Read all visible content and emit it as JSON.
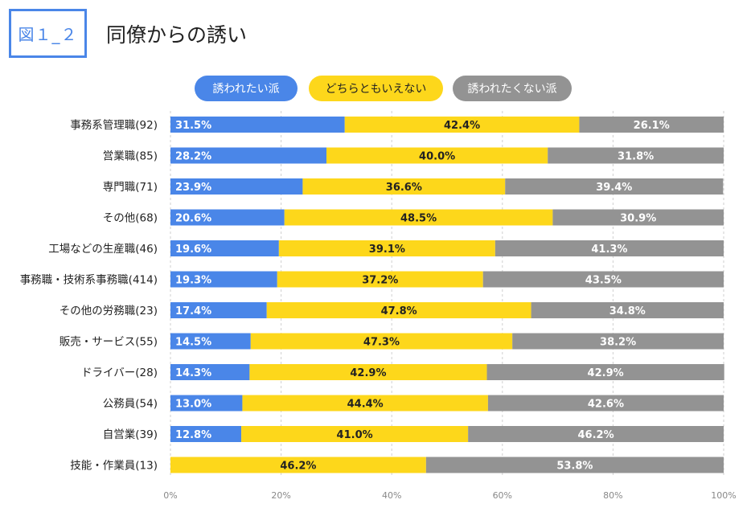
{
  "figure_label": "図１_２",
  "chart_data": {
    "type": "bar",
    "orientation": "horizontal",
    "stacked": true,
    "title": "同僚からの誘い",
    "categories": [
      "事務系管理職(92)",
      "営業職(85)",
      "専門職(71)",
      "その他(68)",
      "工場などの生産職(46)",
      "事務職・技術系事務職(414)",
      "その他の労務職(23)",
      "販売・サービス(55)",
      "ドライバー(28)",
      "公務員(54)",
      "自営業(39)",
      "技能・作業員(13)"
    ],
    "series": [
      {
        "name": "誘われたい派",
        "color": "#4a86e8",
        "label_color": "#ffffff",
        "values": [
          31.5,
          28.2,
          23.9,
          20.6,
          19.6,
          19.3,
          17.4,
          14.5,
          14.3,
          13.0,
          12.8,
          0
        ]
      },
      {
        "name": "どちらともいえない",
        "color": "#fdd71b",
        "label_color": "#222222",
        "values": [
          42.4,
          40.0,
          36.6,
          48.5,
          39.1,
          37.2,
          47.8,
          47.3,
          42.9,
          44.4,
          41.0,
          46.2
        ]
      },
      {
        "name": "誘われたくない派",
        "color": "#939393",
        "label_color": "#ffffff",
        "values": [
          26.1,
          31.8,
          39.4,
          30.9,
          41.3,
          43.5,
          34.8,
          38.2,
          42.9,
          42.6,
          46.2,
          53.8
        ]
      }
    ],
    "value_format": "%",
    "xlim": [
      0,
      100
    ],
    "x_ticks": [
      "0%",
      "20%",
      "40%",
      "60%",
      "80%",
      "100%"
    ],
    "grid": "vertical-dashed",
    "legend": "top-center"
  }
}
